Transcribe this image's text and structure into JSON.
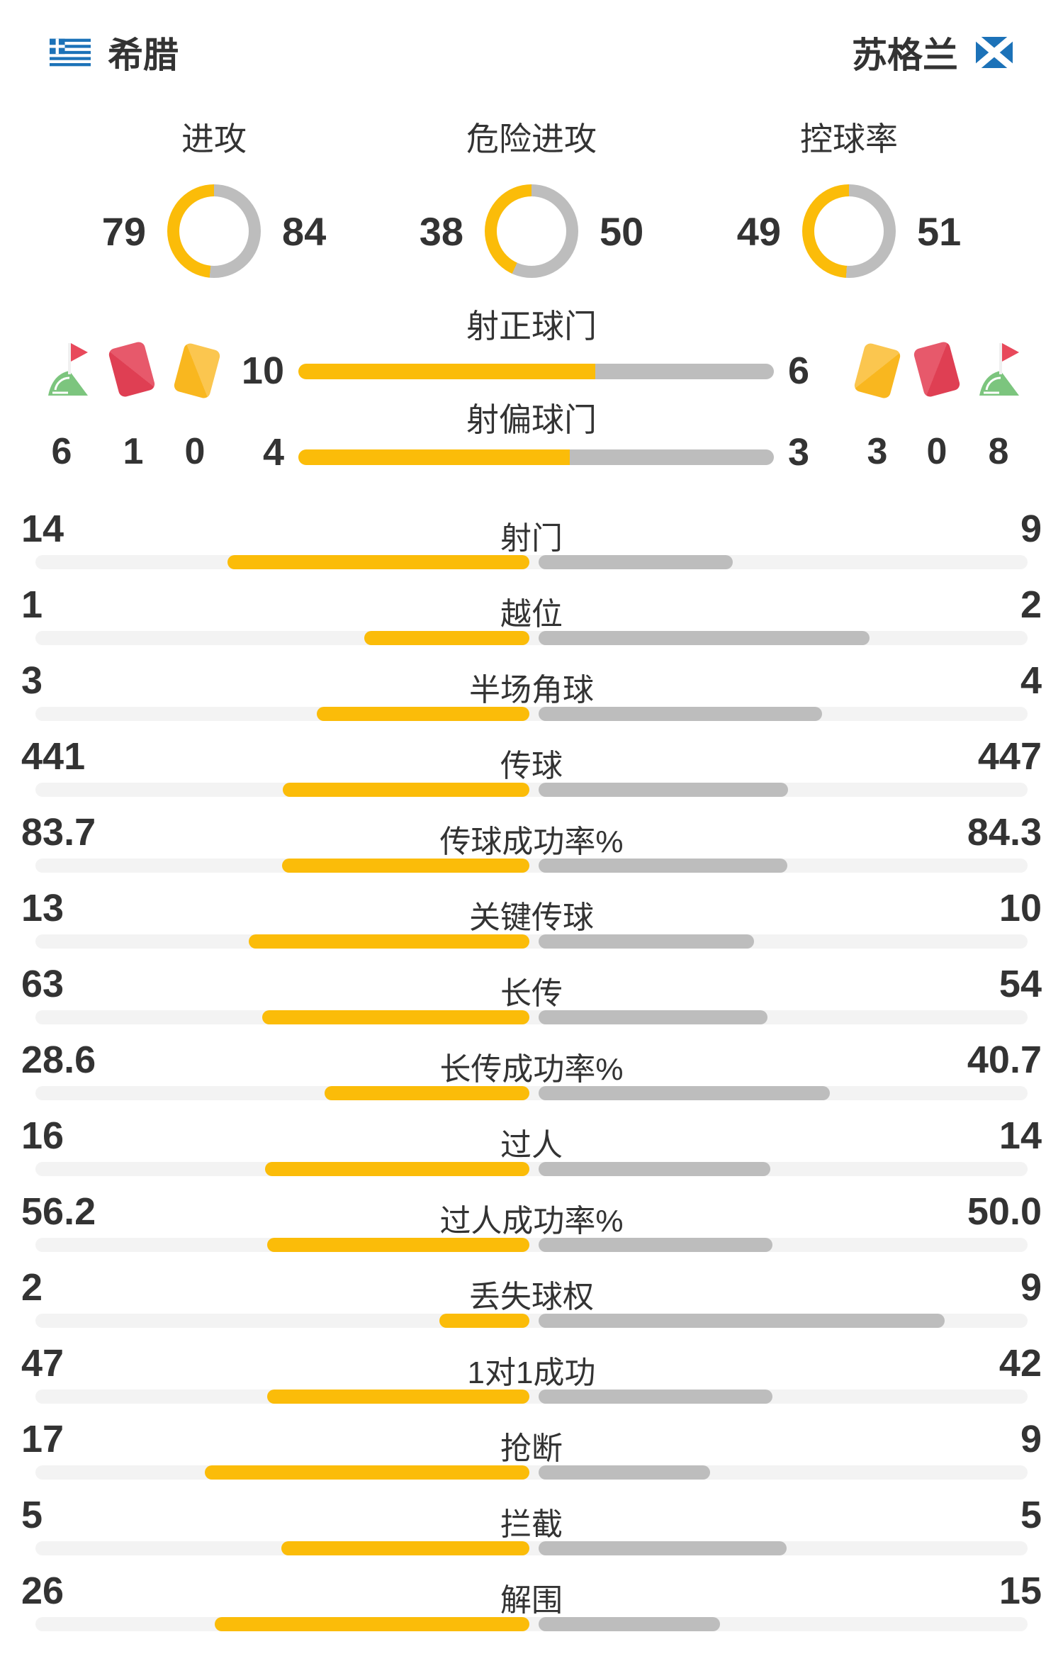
{
  "teams": {
    "home": {
      "name": "希腊"
    },
    "away": {
      "name": "苏格兰"
    }
  },
  "colors": {
    "accent_yellow": "#FBBC09",
    "bar_gray": "#BDBDBD",
    "track_gray": "#F3F3F3",
    "text": "#333333",
    "flag_blue": "#1C72B8",
    "card_red": "#E2495B",
    "card_red_light": "#E7596B",
    "card_yellow": "#F9B71F",
    "card_yellow_light": "#FBC64F",
    "corner_green": "#7CC57E",
    "corner_red": "#E8495B"
  },
  "donuts": [
    {
      "label": "进攻",
      "home": 79,
      "away": 84
    },
    {
      "label": "危险进攻",
      "home": 38,
      "away": 50
    },
    {
      "label": "控球率",
      "home": 49,
      "away": 51
    }
  ],
  "shot_bars": [
    {
      "label": "射正球门",
      "home": 10,
      "away": 6
    },
    {
      "label": "射偏球门",
      "home": 4,
      "away": 3
    }
  ],
  "discipline": {
    "home": {
      "corner_kicks": 6,
      "red_cards": 1,
      "yellow_cards": 0
    },
    "away": {
      "yellow_cards": 3,
      "red_cards": 0,
      "corner_kicks": 8
    }
  },
  "stats": [
    {
      "label": "射门",
      "home": "14",
      "away": "9"
    },
    {
      "label": "越位",
      "home": "1",
      "away": "2"
    },
    {
      "label": "半场角球",
      "home": "3",
      "away": "4"
    },
    {
      "label": "传球",
      "home": "441",
      "away": "447"
    },
    {
      "label": "传球成功率%",
      "home": "83.7",
      "away": "84.3"
    },
    {
      "label": "关键传球",
      "home": "13",
      "away": "10"
    },
    {
      "label": "长传",
      "home": "63",
      "away": "54"
    },
    {
      "label": "长传成功率%",
      "home": "28.6",
      "away": "40.7"
    },
    {
      "label": "过人",
      "home": "16",
      "away": "14"
    },
    {
      "label": "过人成功率%",
      "home": "56.2",
      "away": "50.0"
    },
    {
      "label": "丢失球权",
      "home": "2",
      "away": "9"
    },
    {
      "label": "1对1成功",
      "home": "47",
      "away": "42"
    },
    {
      "label": "抢断",
      "home": "17",
      "away": "9"
    },
    {
      "label": "拦截",
      "home": "5",
      "away": "5"
    },
    {
      "label": "解围",
      "home": "26",
      "away": "15"
    }
  ],
  "chart_data": [
    {
      "type": "pie",
      "title": "进攻",
      "labels": [
        "希腊",
        "苏格兰"
      ],
      "values": [
        79,
        84
      ],
      "legend_position": "sides"
    },
    {
      "type": "pie",
      "title": "危险进攻",
      "labels": [
        "希腊",
        "苏格兰"
      ],
      "values": [
        38,
        50
      ],
      "legend_position": "sides"
    },
    {
      "type": "pie",
      "title": "控球率",
      "labels": [
        "希腊",
        "苏格兰"
      ],
      "values": [
        49,
        51
      ],
      "legend_position": "sides"
    },
    {
      "type": "bar",
      "title": "希腊 vs 苏格兰 比赛统计",
      "categories": [
        "射正球门",
        "射偏球门",
        "角球",
        "红牌",
        "黄牌",
        "射门",
        "越位",
        "半场角球",
        "传球",
        "传球成功率%",
        "关键传球",
        "长传",
        "长传成功率%",
        "过人",
        "过人成功率%",
        "丢失球权",
        "1对1成功",
        "抢断",
        "拦截",
        "解围"
      ],
      "series": [
        {
          "name": "希腊",
          "values": [
            10,
            4,
            6,
            1,
            0,
            14,
            1,
            3,
            441,
            83.7,
            13,
            63,
            28.6,
            16,
            56.2,
            2,
            47,
            17,
            5,
            26
          ]
        },
        {
          "name": "苏格兰",
          "values": [
            6,
            3,
            8,
            0,
            3,
            9,
            2,
            4,
            447,
            84.3,
            10,
            54,
            40.7,
            14,
            50.0,
            9,
            42,
            9,
            5,
            15
          ]
        }
      ],
      "grid": false,
      "legend_position": "none"
    }
  ]
}
